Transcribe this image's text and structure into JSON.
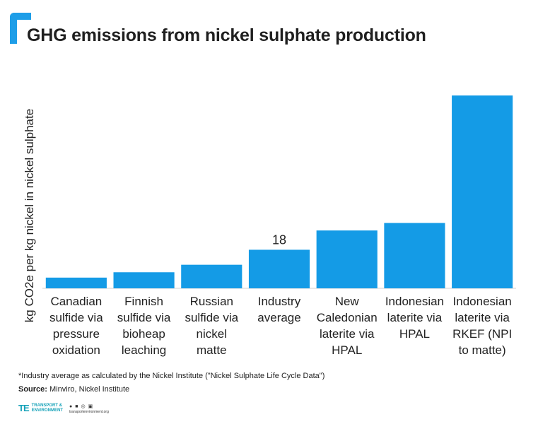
{
  "header": {
    "title": "GHG emissions from nickel sulphate production"
  },
  "colors": {
    "accent": "#1e9ee8",
    "bar": "#149be6",
    "brand": "#16a2b8"
  },
  "chart_data": {
    "type": "bar",
    "title": "GHG emissions from nickel sulphate production",
    "xlabel": "",
    "ylabel": "kg CO2e per kg nickel in nickel sulphate",
    "categories": [
      [
        "Canadian",
        "sulfide via",
        "pressure",
        "oxidation"
      ],
      [
        "Finnish",
        "sulfide via",
        "bioheap",
        "leaching"
      ],
      [
        "Russian",
        "sulfide via",
        "nickel",
        "matte"
      ],
      [
        "Industry",
        "average"
      ],
      [
        "New",
        "Caledonian",
        "laterite via",
        "HPAL"
      ],
      [
        "Indonesian",
        "laterite via",
        "HPAL"
      ],
      [
        "Indonesian",
        "laterite via",
        "RKEF (NPI",
        "to matte)"
      ]
    ],
    "values": [
      5,
      7.5,
      11,
      18,
      27,
      30.5,
      90
    ],
    "data_labels": [
      "",
      "",
      "",
      "18",
      "",
      "",
      ""
    ],
    "ylim": [
      0,
      95
    ],
    "grid": false,
    "legend": "none"
  },
  "footer": {
    "footnote": "*Industry average as calculated by the Nickel Institute (\"Nickel Sulphate Life Cycle Data\")",
    "source_label": "Source:",
    "source_text": " Minviro, Nickel Institute",
    "logo_mark": "TE",
    "logo_line1": "TRANSPORT &",
    "logo_line2": "ENVIRONMENT",
    "social_icons": [
      "twitter-icon",
      "facebook-icon",
      "instagram-icon",
      "linkedin-icon"
    ],
    "url": "transportenvironment.org"
  }
}
